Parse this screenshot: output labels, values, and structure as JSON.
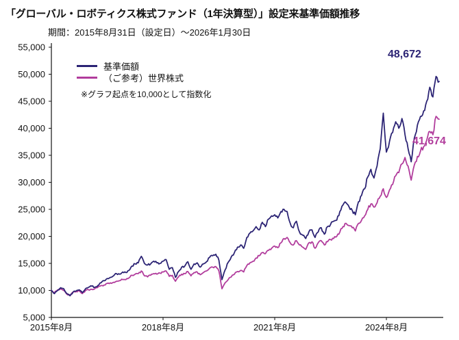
{
  "header": {
    "title": "「グローバル・ロボティクス株式ファンド（1年決算型）」設定来基準価額推移",
    "period": "期間：2015年8月31日（設定日）～2026年1月30日"
  },
  "legend": {
    "items": [
      {
        "label": "基準価額",
        "color": "#2b2374"
      },
      {
        "label": "（ご参考）世界株式",
        "color": "#b13c9c"
      }
    ],
    "note": "※グラフ起点を10,000として指数化"
  },
  "annotations": {
    "fund_end_value": "48,672",
    "world_end_value": "41,674"
  },
  "chart_data": {
    "type": "line",
    "title": "「グローバル・ロボティクス株式ファンド（1年決算型）」設定来基準価額推移",
    "x_start": "2015-08",
    "x_end": "2026-01",
    "x_step": "month",
    "ylim": [
      5000,
      55000
    ],
    "grid": false,
    "legend_position": "top-left",
    "y_ticks": [
      {
        "value": 55000,
        "label": "55,000"
      },
      {
        "value": 50000,
        "label": "50,000"
      },
      {
        "value": 45000,
        "label": "45,000"
      },
      {
        "value": 40000,
        "label": "40,000"
      },
      {
        "value": 35000,
        "label": "35,000"
      },
      {
        "value": 30000,
        "label": "30,000"
      },
      {
        "value": 25000,
        "label": "25,000"
      },
      {
        "value": 20000,
        "label": "20,000"
      },
      {
        "value": 15000,
        "label": "15,000"
      },
      {
        "value": 10000,
        "label": "10,000"
      },
      {
        "value": 5000,
        "label": "5,000"
      }
    ],
    "x_ticks": [
      {
        "index": 0,
        "label": "2015年8月"
      },
      {
        "index": 36,
        "label": "2018年8月"
      },
      {
        "index": 72,
        "label": "2021年8月"
      },
      {
        "index": 108,
        "label": "2024年8月"
      }
    ],
    "series": [
      {
        "name": "基準価額",
        "color": "#2b2374",
        "end_value": 48672,
        "end_label": "48,672",
        "values": [
          10000,
          9400,
          10000,
          10500,
          10300,
          9400,
          9000,
          9700,
          9900,
          10100,
          9600,
          10300,
          10600,
          10800,
          10600,
          10900,
          11400,
          11800,
          12200,
          12400,
          12700,
          13100,
          13000,
          13400,
          13300,
          13700,
          14500,
          14900,
          15100,
          16300,
          15000,
          14700,
          14900,
          15400,
          15100,
          15000,
          15400,
          15700,
          13900,
          14200,
          12400,
          13500,
          14300,
          14500,
          15300,
          13900,
          14900,
          15100,
          14300,
          14900,
          15300,
          16100,
          16400,
          16700,
          15600,
          12000,
          13800,
          15200,
          16200,
          17000,
          18000,
          18400,
          17800,
          19800,
          20600,
          21000,
          21800,
          21200,
          22600,
          21800,
          23200,
          23800,
          24000,
          23400,
          24600,
          25000,
          24600,
          22400,
          21600,
          22800,
          20800,
          20200,
          19600,
          20800,
          21200,
          19800,
          20800,
          21600,
          20400,
          21800,
          22200,
          22800,
          23000,
          24600,
          25800,
          26200,
          25400,
          24800,
          24000,
          26400,
          27600,
          28800,
          31000,
          32400,
          30800,
          33000,
          36200,
          42800,
          35600,
          37600,
          39200,
          41200,
          40000,
          41800,
          38800,
          36200,
          33800,
          38200,
          40600,
          42200,
          43200,
          45000,
          47600,
          45800,
          49600,
          48672
        ]
      },
      {
        "name": "（ご参考）世界株式",
        "color": "#b13c9c",
        "end_value": 41674,
        "end_label": "41,674",
        "values": [
          10000,
          9600,
          10100,
          10300,
          10000,
          9300,
          9100,
          9700,
          9800,
          9900,
          9400,
          10000,
          10100,
          10200,
          10300,
          10600,
          10900,
          11000,
          11300,
          11400,
          11500,
          11700,
          11800,
          12000,
          12000,
          12300,
          12800,
          13000,
          13100,
          13600,
          12700,
          12500,
          12800,
          13100,
          13000,
          13200,
          13400,
          13600,
          12600,
          12800,
          11700,
          12500,
          13000,
          13100,
          13500,
          12700,
          13300,
          13400,
          12900,
          13300,
          13600,
          14100,
          14300,
          14400,
          13600,
          10300,
          11400,
          12000,
          12500,
          13000,
          13500,
          13700,
          13400,
          14600,
          15100,
          15400,
          16000,
          16400,
          17000,
          16800,
          17400,
          17800,
          18200,
          17900,
          18800,
          19600,
          19800,
          18800,
          18400,
          19200,
          18400,
          18000,
          17600,
          18800,
          19000,
          17800,
          18800,
          19200,
          18400,
          19000,
          19400,
          19600,
          20000,
          20800,
          21800,
          22400,
          22000,
          21600,
          21000,
          22400,
          23000,
          23800,
          25000,
          26000,
          25400,
          26200,
          27400,
          28800,
          27200,
          28600,
          29600,
          31200,
          31800,
          33400,
          34600,
          33000,
          30400,
          33200,
          34800,
          35800,
          36600,
          37800,
          39400,
          38800,
          42200,
          41674
        ]
      }
    ]
  }
}
